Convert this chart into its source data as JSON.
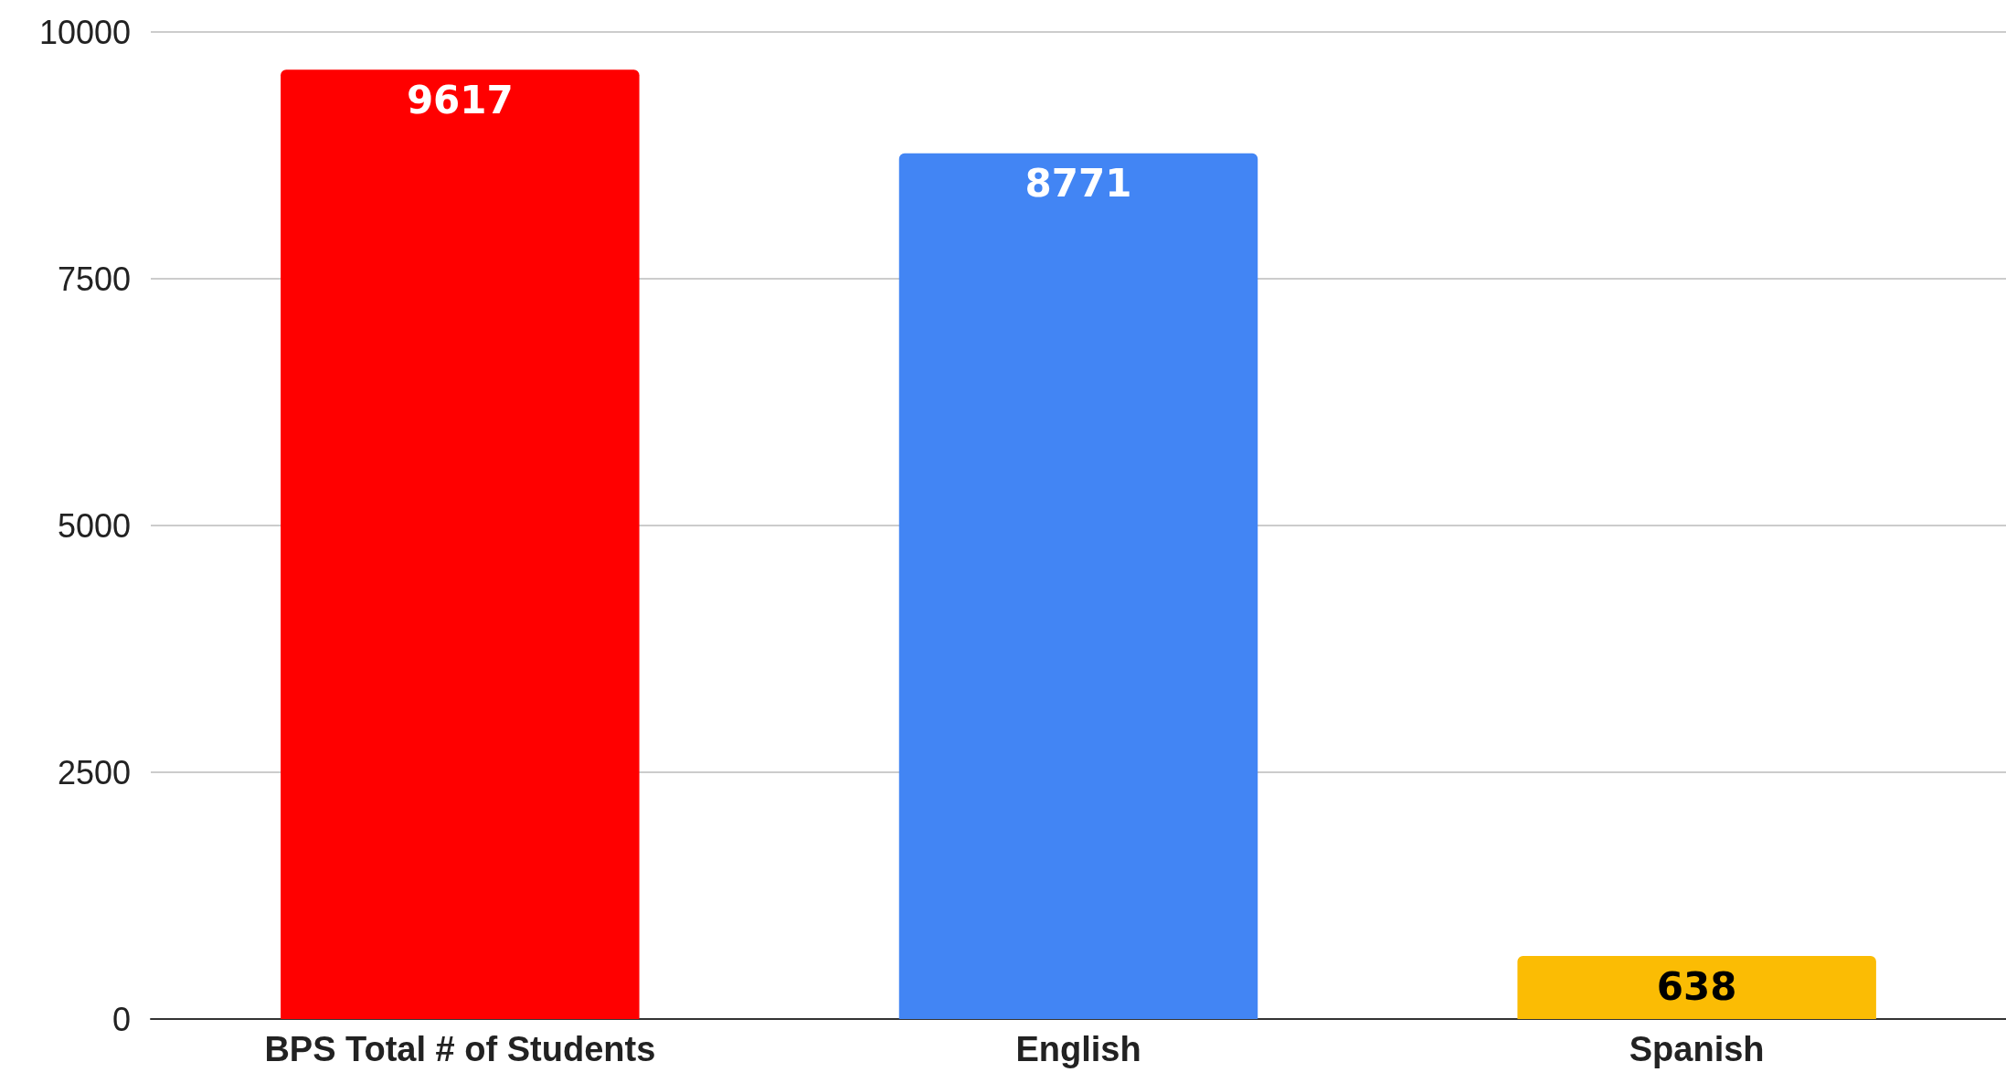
{
  "chart_data": {
    "type": "bar",
    "categories": [
      "BPS Total # of Students",
      "English",
      "Spanish"
    ],
    "values": [
      9617,
      8771,
      638
    ],
    "colors": [
      "#ff0000",
      "#4285f4",
      "#fbbc04"
    ],
    "ylim": [
      0,
      10000
    ],
    "yticks": [
      0,
      2500,
      5000,
      7500,
      10000
    ],
    "grid": "y",
    "data_labels": true
  }
}
